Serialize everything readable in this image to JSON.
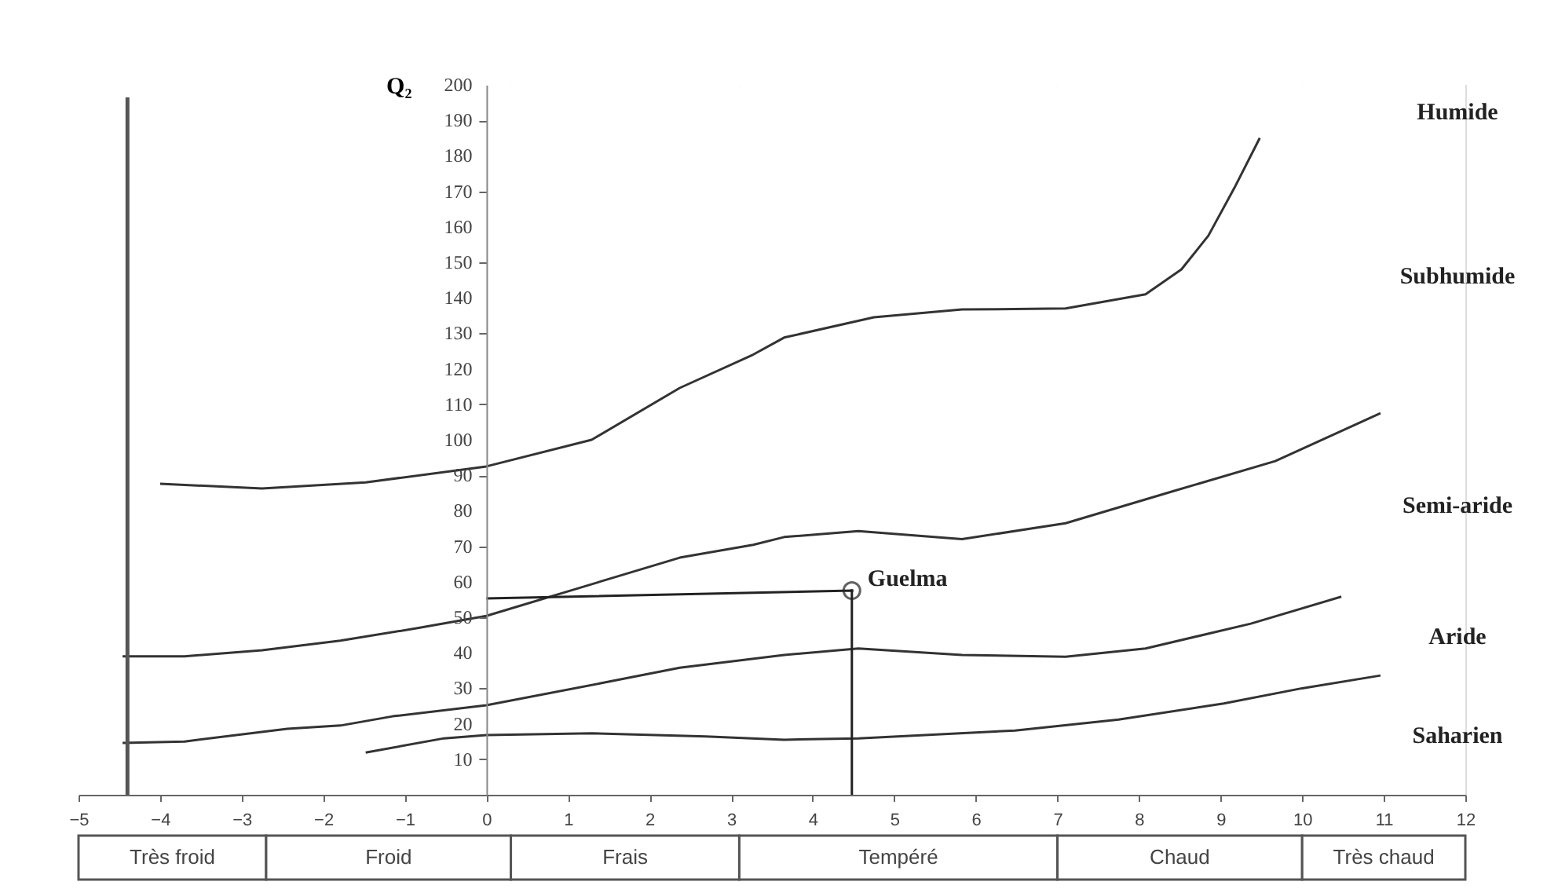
{
  "chart_data": {
    "type": "line",
    "ylabel": "Q₂",
    "xlim": [
      -5,
      12
    ],
    "xticks": [
      -5,
      -4,
      -3,
      -2,
      -1,
      0,
      1,
      2,
      3,
      4,
      5,
      6,
      7,
      8,
      9,
      10,
      11,
      12
    ],
    "ylim": [
      0,
      200
    ],
    "yticks": [
      10,
      20,
      30,
      40,
      50,
      60,
      70,
      80,
      90,
      100,
      110,
      120,
      130,
      140,
      150,
      160,
      170,
      180,
      190,
      200
    ],
    "grid": false,
    "marker": "none",
    "line_style": "solid",
    "series": [
      {
        "color": "#333333",
        "x": [
          -4.0,
          -2.75,
          -1.48,
          0,
          1.29,
          2.37,
          3.27,
          3.65,
          4.75,
          5.83,
          7.1,
          8.08,
          8.52,
          8.85,
          9.17,
          9.48
        ],
        "values": [
          87.6,
          86.3,
          88,
          92.5,
          100,
          114.6,
          124,
          128.8,
          134.5,
          136.7,
          137,
          141,
          148,
          157.5,
          171,
          185
        ]
      },
      {
        "color": "#333333",
        "x": [
          -4.46,
          -3.7,
          -2.75,
          -1.79,
          -0.83,
          0,
          1.1,
          2.37,
          3.27,
          3.65,
          4.56,
          5.83,
          7.1,
          8.4,
          9.67,
          10.96
        ],
        "values": [
          39,
          39,
          40.7,
          43.4,
          47,
          50.4,
          58,
          66.8,
          70.4,
          72.6,
          74.3,
          72,
          76.5,
          85.4,
          94,
          107.5
        ]
      },
      {
        "color": "#333333",
        "x": [
          -4.46,
          -3.7,
          -2.44,
          -1.79,
          -1.15,
          0,
          1.4,
          2.37,
          3.65,
          4.56,
          5.83,
          7.1,
          8.08,
          9.37,
          10.48
        ],
        "values": [
          14.6,
          15,
          18.6,
          19.5,
          22.1,
          25.2,
          31.4,
          35.8,
          39.4,
          41.2,
          39.4,
          38.9,
          41.2,
          48.2,
          55.8
        ]
      },
      {
        "color": "#333333",
        "x": [
          -1.48,
          -0.52,
          0,
          1.29,
          2.69,
          3.65,
          4.56,
          6.48,
          7.75,
          9.04,
          10,
          10.96
        ],
        "values": [
          11.9,
          15.9,
          16.8,
          17.3,
          16.4,
          15.5,
          15.9,
          18.1,
          21.2,
          25.7,
          30,
          33.6
        ]
      },
      {
        "color": "#222222",
        "x": [
          0,
          4.48,
          4.48
        ],
        "values": [
          55.3,
          57.5,
          0
        ]
      },
      {
        "type": "scatter",
        "marker": "circle",
        "color": "#222222",
        "x": [
          4.48
        ],
        "values": [
          57.5
        ]
      }
    ],
    "ref_lines": [
      {
        "axis": "x",
        "value": -4.4,
        "color": "#555555"
      }
    ],
    "bands": [
      {
        "axis": "x",
        "from": -5,
        "to": -2.7,
        "label": "Très froid"
      },
      {
        "axis": "x",
        "from": -2.7,
        "to": 0.3,
        "label": "Froid"
      },
      {
        "axis": "x",
        "from": 0.3,
        "to": 3.1,
        "label": "Frais"
      },
      {
        "axis": "x",
        "from": 3.1,
        "to": 7,
        "label": "Tempéré"
      },
      {
        "axis": "x",
        "from": 7,
        "to": 10,
        "label": "Chaud"
      },
      {
        "axis": "x",
        "from": 10,
        "to": 12,
        "label": "Très chaud"
      }
    ],
    "annotations": [
      "Humide",
      "Subhumide",
      "Semi-aride",
      "Aride",
      "Saharien",
      {
        "text": "Guelma",
        "x": 4.48,
        "y": 57.5
      }
    ]
  }
}
